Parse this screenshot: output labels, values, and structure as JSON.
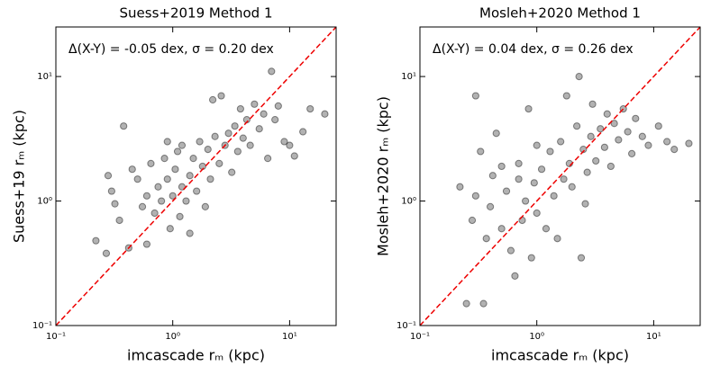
{
  "chart_data": [
    {
      "type": "scatter",
      "title": "Suess+2019 Method 1",
      "xlabel": "imcascade rₘ (kpc)",
      "ylabel": "Suess+19 rₘ (kpc)",
      "annotation": "Δ(X-Y) = -0.05 dex, σ = 0.20 dex",
      "log": true,
      "color": "#000000",
      "xlim": [
        0.1,
        25
      ],
      "ylim": [
        0.1,
        25
      ],
      "xticks": [
        {
          "value": 0.1,
          "label": "10⁻¹"
        },
        {
          "value": 1,
          "label": "10⁰"
        },
        {
          "value": 10,
          "label": "10¹"
        }
      ],
      "yticks": [
        {
          "value": 0.1,
          "label": "10⁻¹"
        },
        {
          "value": 1,
          "label": "10⁰"
        },
        {
          "value": 10,
          "label": "10¹"
        }
      ],
      "x": [
        0.22,
        0.27,
        0.28,
        0.3,
        0.32,
        0.35,
        0.38,
        0.42,
        0.45,
        0.5,
        0.55,
        0.6,
        0.65,
        0.7,
        0.75,
        0.8,
        0.85,
        0.9,
        0.95,
        1.0,
        1.05,
        1.1,
        1.15,
        1.2,
        1.3,
        1.4,
        1.5,
        1.6,
        1.7,
        1.8,
        1.9,
        2.0,
        2.1,
        2.2,
        2.3,
        2.5,
        2.6,
        2.8,
        3.0,
        3.2,
        3.4,
        3.6,
        3.8,
        4.0,
        4.3,
        4.6,
        5.0,
        5.5,
        6.0,
        6.5,
        7.0,
        7.5,
        8.0,
        9.0,
        10,
        11,
        13,
        15,
        20,
        0.6,
        1.4,
        0.9,
        1.2
      ],
      "y": [
        0.48,
        0.38,
        1.6,
        1.2,
        0.95,
        0.7,
        4.0,
        0.42,
        1.8,
        1.5,
        0.9,
        1.1,
        2.0,
        0.8,
        1.3,
        1.0,
        2.2,
        1.5,
        0.6,
        1.1,
        1.8,
        2.5,
        0.75,
        1.3,
        1.0,
        1.6,
        2.2,
        1.2,
        3.0,
        1.9,
        0.9,
        2.6,
        1.5,
        6.5,
        3.3,
        2.0,
        7.0,
        2.8,
        3.5,
        1.7,
        4.0,
        2.5,
        5.5,
        3.2,
        4.5,
        2.8,
        6.0,
        3.8,
        5.0,
        2.2,
        11,
        4.5,
        5.8,
        3.0,
        2.8,
        2.3,
        3.6,
        5.5,
        5.0,
        0.45,
        0.55,
        3.0,
        2.8
      ]
    },
    {
      "type": "scatter",
      "title": "Mosleh+2020 Method 1",
      "xlabel": "imcascade rₘ (kpc)",
      "ylabel": "Mosleh+2020 rₘ (kpc)",
      "annotation": "Δ(X-Y) = 0.04 dex, σ = 0.26 dex",
      "log": true,
      "color": "#000000",
      "xlim": [
        0.1,
        25
      ],
      "ylim": [
        0.1,
        25
      ],
      "xticks": [
        {
          "value": 0.1,
          "label": "10⁻¹"
        },
        {
          "value": 1,
          "label": "10⁰"
        },
        {
          "value": 10,
          "label": "10¹"
        }
      ],
      "yticks": [
        {
          "value": 0.1,
          "label": "10⁻¹"
        },
        {
          "value": 1,
          "label": "10⁰"
        },
        {
          "value": 10,
          "label": "10¹"
        }
      ],
      "x": [
        0.22,
        0.25,
        0.28,
        0.3,
        0.33,
        0.35,
        0.37,
        0.4,
        0.42,
        0.45,
        0.5,
        0.55,
        0.6,
        0.65,
        0.7,
        0.75,
        0.8,
        0.85,
        0.9,
        0.95,
        1.0,
        1.1,
        1.2,
        1.3,
        1.4,
        1.5,
        1.6,
        1.7,
        1.8,
        1.9,
        2.0,
        2.2,
        2.3,
        2.4,
        2.5,
        2.7,
        2.9,
        3.0,
        3.2,
        3.5,
        3.8,
        4.0,
        4.3,
        4.6,
        5.0,
        5.5,
        6.0,
        6.5,
        7.0,
        8.0,
        9.0,
        11,
        13,
        15,
        20,
        0.3,
        0.5,
        1.0,
        0.7,
        2.6
      ],
      "y": [
        1.3,
        0.15,
        0.7,
        1.1,
        2.5,
        0.15,
        0.5,
        0.9,
        1.6,
        3.5,
        0.6,
        1.2,
        0.4,
        0.25,
        2.0,
        0.7,
        1.0,
        5.5,
        0.35,
        1.4,
        0.8,
        1.8,
        0.6,
        2.5,
        1.1,
        0.5,
        3.0,
        1.5,
        7.0,
        2.0,
        1.3,
        4.0,
        10,
        0.35,
        2.6,
        1.7,
        3.3,
        6.0,
        2.1,
        3.8,
        2.7,
        5.0,
        1.9,
        4.2,
        3.1,
        5.5,
        3.6,
        2.4,
        4.6,
        3.3,
        2.8,
        4.0,
        3.0,
        2.6,
        2.9,
        7.0,
        1.9,
        2.8,
        1.5,
        0.95
      ]
    }
  ]
}
